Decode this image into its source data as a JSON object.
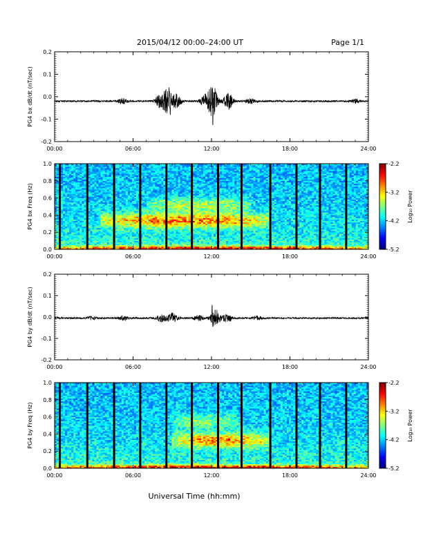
{
  "header": {
    "title": "2015/04/12  00:00–24:00 UT",
    "page": "Page 1/1"
  },
  "footer": {
    "xlabel": "Universal Time (hh:mm)"
  },
  "colorbar": {
    "label": "Log₁₀ Power",
    "ticks": [
      "-2.2",
      "-3.2",
      "-4.2",
      "-5.2"
    ]
  },
  "chart_data": [
    {
      "type": "line",
      "ylabel": "PG4 bx dB/dt (nT/sec)",
      "xlim": [
        0,
        24
      ],
      "ylim": [
        -0.2,
        0.2
      ],
      "x_ticks": [
        "00:00",
        "06:00",
        "12:00",
        "18:00",
        "24:00"
      ],
      "y_ticks": [
        "0.2",
        "0.1",
        "0.0",
        "-0.1",
        "-0.2"
      ],
      "baseline": -0.02,
      "bursts": [
        {
          "t": 5.2,
          "amp": 0.012
        },
        {
          "t": 8.0,
          "amp": 0.025
        },
        {
          "t": 8.6,
          "amp": 0.05
        },
        {
          "t": 9.3,
          "amp": 0.03
        },
        {
          "t": 11.5,
          "amp": 0.025
        },
        {
          "t": 12.1,
          "amp": 0.07
        },
        {
          "t": 13.3,
          "amp": 0.035
        },
        {
          "t": 15.0,
          "amp": 0.01
        },
        {
          "t": 23.0,
          "amp": 0.008
        }
      ],
      "peaks": [
        {
          "t": 8.75,
          "v": 0.04
        },
        {
          "t": 8.85,
          "v": -0.08
        },
        {
          "t": 12.05,
          "v": 0.04
        },
        {
          "t": 12.1,
          "v": -0.125
        }
      ]
    },
    {
      "type": "heatmap",
      "ylabel": "PG4 bx Freq (Hz)",
      "xlim": [
        0,
        24
      ],
      "ylim": [
        0,
        1
      ],
      "x_ticks": [
        "00:00",
        "06:00",
        "12:00",
        "18:00",
        "24:00"
      ],
      "y_ticks": [
        "1.0",
        "0.8",
        "0.6",
        "0.4",
        "0.2",
        "0.0"
      ],
      "zlim": [
        -5.2,
        -2.2
      ],
      "gaps_hours": [
        0.4,
        2.5,
        4.55,
        6.55,
        8.55,
        10.5,
        12.5,
        14.3,
        16.5,
        18.5,
        20.3,
        22.3
      ],
      "features": [
        {
          "t0": 3.5,
          "t1": 16.5,
          "f": 0.34,
          "strength": 0.85
        },
        {
          "t0": 7.0,
          "t1": 15.0,
          "f": 0.52,
          "strength": 0.45
        },
        {
          "t0": 0,
          "t1": 24,
          "f": 0.01,
          "strength": 1.0
        }
      ]
    },
    {
      "type": "line",
      "ylabel": "PG4 by dB/dt (nT/sec)",
      "xlim": [
        0,
        24
      ],
      "ylim": [
        -0.2,
        0.2
      ],
      "x_ticks": [
        "00:00",
        "06:00",
        "12:00",
        "18:00",
        "24:00"
      ],
      "y_ticks": [
        "0.2",
        "0.1",
        "0.0",
        "-0.1",
        "-0.2"
      ],
      "baseline": -0.005,
      "bursts": [
        {
          "t": 2.8,
          "amp": 0.006
        },
        {
          "t": 5.3,
          "amp": 0.01
        },
        {
          "t": 8.2,
          "amp": 0.018
        },
        {
          "t": 9.0,
          "amp": 0.022
        },
        {
          "t": 11.0,
          "amp": 0.012
        },
        {
          "t": 12.3,
          "amp": 0.04
        },
        {
          "t": 13.2,
          "amp": 0.02
        },
        {
          "t": 15.5,
          "amp": 0.008
        }
      ],
      "peaks": [
        {
          "t": 12.05,
          "v": 0.055
        },
        {
          "t": 12.1,
          "v": -0.045
        }
      ]
    },
    {
      "type": "heatmap",
      "ylabel": "PG4 by Freq (Hz)",
      "xlim": [
        0,
        24
      ],
      "ylim": [
        0,
        1
      ],
      "x_ticks": [
        "00:00",
        "06:00",
        "12:00",
        "18:00",
        "24:00"
      ],
      "y_ticks": [
        "1.0",
        "0.8",
        "0.6",
        "0.4",
        "0.2",
        "0.0"
      ],
      "zlim": [
        -5.2,
        -2.2
      ],
      "gaps_hours": [
        0.4,
        2.5,
        4.55,
        6.55,
        8.55,
        10.5,
        12.5,
        14.3,
        16.5,
        18.5,
        20.3,
        22.3
      ],
      "features": [
        {
          "t0": 9.0,
          "t1": 16.5,
          "f": 0.33,
          "strength": 0.8
        },
        {
          "t0": 9.0,
          "t1": 14.0,
          "f": 0.55,
          "strength": 0.4
        },
        {
          "t0": 0,
          "t1": 24,
          "f": 0.01,
          "strength": 1.0
        }
      ]
    }
  ]
}
